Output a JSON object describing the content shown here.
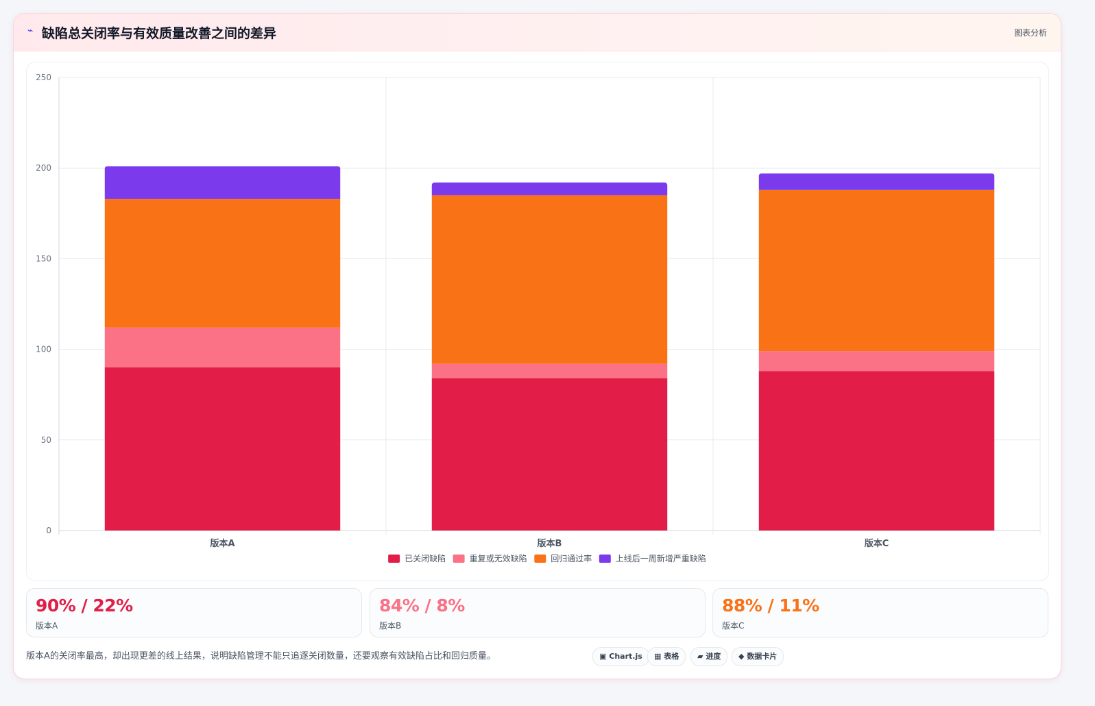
{
  "header": {
    "title": "缺陷总关闭率与有效质量改善之间的差异",
    "tag": "图表分析"
  },
  "chart_data": {
    "type": "bar",
    "stacked": true,
    "categories": [
      "版本A",
      "版本B",
      "版本C"
    ],
    "series": [
      {
        "name": "已关闭缺陷",
        "color": "#e11d48",
        "values": [
          90,
          84,
          88
        ]
      },
      {
        "name": "重复或无效缺陷",
        "color": "#fb7185",
        "values": [
          22,
          8,
          11
        ]
      },
      {
        "name": "回归通过率",
        "color": "#f97316",
        "values": [
          71,
          93,
          89
        ]
      },
      {
        "name": "上线后一周新增严重缺陷",
        "color": "#7c3aed",
        "values": [
          18,
          7,
          9
        ]
      }
    ],
    "ylim": [
      0,
      250
    ],
    "yticks": [
      0,
      50,
      100,
      150,
      200,
      250
    ],
    "grid": true,
    "legend": "bottom"
  },
  "stats": [
    {
      "value": "90% / 22%",
      "label": "版本A",
      "color": "#e11d48"
    },
    {
      "value": "84% / 8%",
      "label": "版本B",
      "color": "#fb7185"
    },
    {
      "value": "88% / 11%",
      "label": "版本C",
      "color": "#f97316"
    }
  ],
  "note": "版本A的关闭率最高，却出现更差的线上结果，说明缺陷管理不能只追逐关闭数量，还要观察有效缺陷占比和回归质量。",
  "chips": [
    {
      "icon": "▣",
      "label": "Chart.js"
    },
    {
      "icon": "▦",
      "label": "表格"
    },
    {
      "icon": "▰",
      "label": "进度"
    },
    {
      "icon": "◆",
      "label": "数据卡片"
    }
  ]
}
